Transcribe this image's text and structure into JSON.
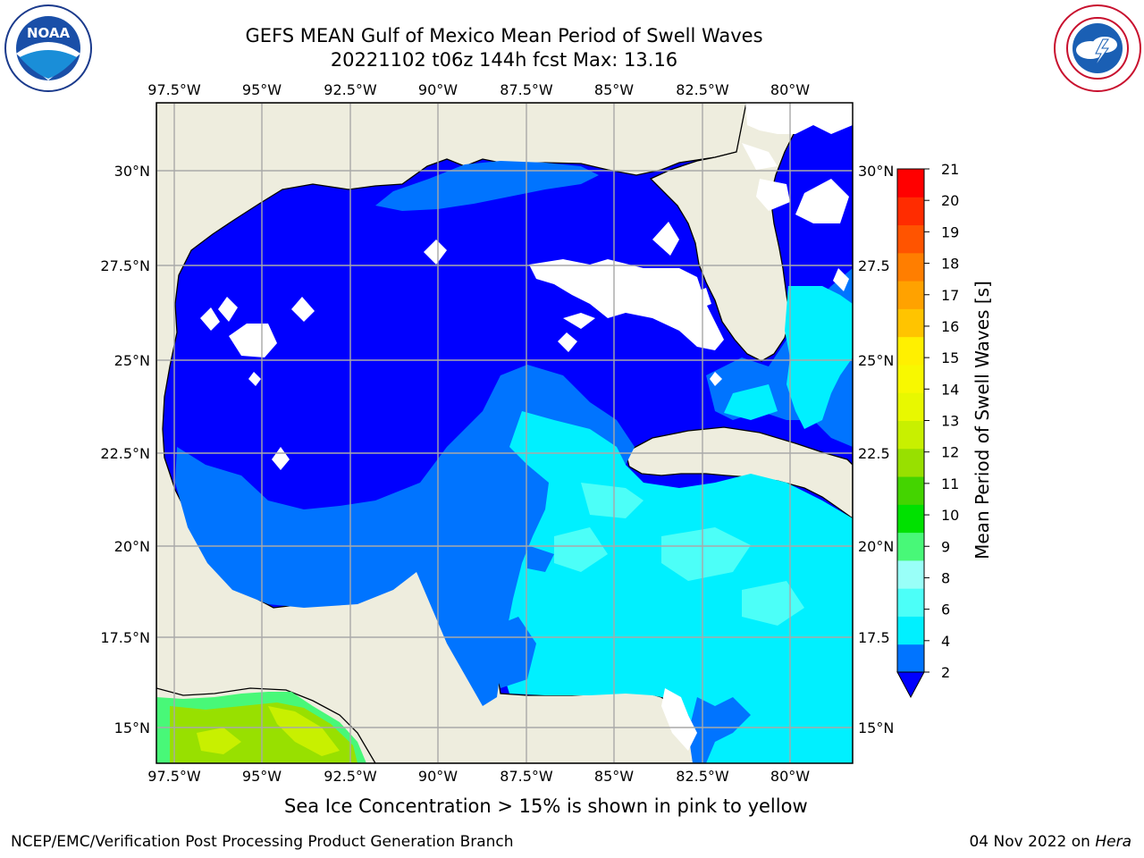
{
  "header": {
    "title_line1": "GEFS MEAN Gulf of Mexico Mean Period of Swell Waves",
    "title_line2": "20221102 t06z 144h fcst   Max: 13.16"
  },
  "logos": {
    "left": {
      "icon": "noaa-logo",
      "text": "NOAA"
    },
    "right": {
      "icon": "national-weather-service-logo",
      "text": "NATIONAL WEATHER SERVICE"
    }
  },
  "map": {
    "longitude_ticks": [
      "97.5°W",
      "95°W",
      "92.5°W",
      "90°W",
      "87.5°W",
      "85°W",
      "82.5°W",
      "80°W"
    ],
    "latitude_ticks_left": [
      "30°N",
      "27.5°N",
      "25°N",
      "22.5°N",
      "20°N",
      "17.5°N",
      "15°N"
    ],
    "latitude_ticks_right": [
      "30°N",
      "27.5",
      "25°N",
      "22.5",
      "20°N",
      "17.5",
      "15°N"
    ],
    "colors": {
      "land": "#eeedde",
      "coast": "#000000",
      "grid": "#a9a9a9",
      "no_data": "#ffffff"
    }
  },
  "colorbar": {
    "label": "Mean Period of Swell Waves [s]",
    "tick_labels": [
      "21",
      "20",
      "19",
      "18",
      "17",
      "16",
      "15",
      "14",
      "13",
      "12",
      "11",
      "10",
      "9",
      "8",
      "6",
      "4",
      "2"
    ],
    "colors_bottom_to_top": [
      "#0074ff",
      "#00f0ff",
      "#4cfff8",
      "#99fff8",
      "#48f878",
      "#00e100",
      "#44d400",
      "#98e000",
      "#c8f000",
      "#e8f800",
      "#f8f800",
      "#fff000",
      "#ffc400",
      "#ffa200",
      "#ff7e00",
      "#ff5400",
      "#ff2c00",
      "#ff0000"
    ],
    "extend_color": "#0000ff"
  },
  "footer": {
    "note": "Sea Ice Concentration > 15% is shown in pink to yellow",
    "credit": "NCEP/EMC/Verification Post Processing Product Generation Branch",
    "date_prefix": "04 Nov 2022 on ",
    "machine": "Hera"
  }
}
